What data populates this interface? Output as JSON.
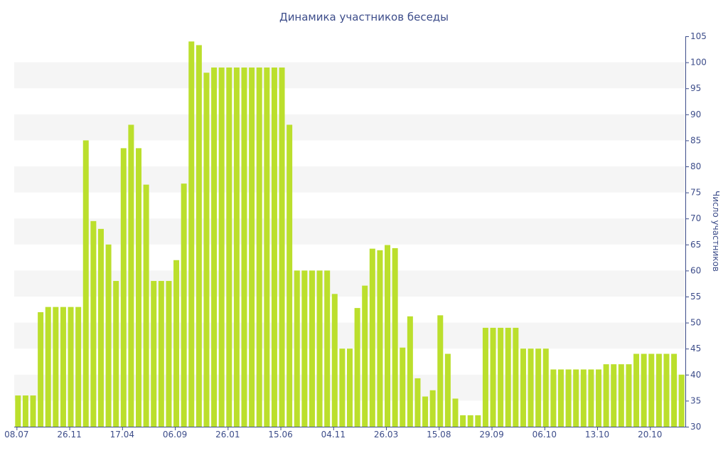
{
  "colors": {
    "bar": "#bbdf2c",
    "text": "#3d4d8a",
    "band": "#f5f5f5",
    "axis": "#3d4d8a"
  },
  "chart_data": {
    "type": "bar",
    "title": "Динамика участников беседы",
    "xlabel": "",
    "ylabel": "Число участников",
    "y_axis_side": "right",
    "ylim": [
      30,
      105
    ],
    "y_ticks": [
      30,
      35,
      40,
      45,
      50,
      55,
      60,
      65,
      70,
      75,
      80,
      85,
      90,
      95,
      100,
      105
    ],
    "grid": "alternating horizontal bands",
    "x_tick_labels": [
      {
        "label": "08.07",
        "index": 0
      },
      {
        "label": "26.11",
        "index": 7
      },
      {
        "label": "17.04",
        "index": 14
      },
      {
        "label": "06.09",
        "index": 21
      },
      {
        "label": "26.01",
        "index": 28
      },
      {
        "label": "15.06",
        "index": 35
      },
      {
        "label": "04.11",
        "index": 42
      },
      {
        "label": "26.03",
        "index": 49
      },
      {
        "label": "15.08",
        "index": 56
      },
      {
        "label": "29.09",
        "index": 63
      },
      {
        "label": "06.10",
        "index": 70
      },
      {
        "label": "13.10",
        "index": 77
      },
      {
        "label": "20.10",
        "index": 84
      }
    ],
    "values": [
      36,
      36,
      36,
      52,
      53,
      53,
      53,
      53,
      53,
      85,
      69.5,
      68,
      65,
      58,
      83.5,
      88,
      83.5,
      76.5,
      58,
      58,
      58,
      62,
      76.7,
      104,
      103.3,
      98,
      99,
      99,
      99,
      99,
      99,
      99,
      99,
      99,
      99,
      99,
      88,
      60,
      60,
      60,
      60,
      60,
      55.5,
      45,
      45,
      52.8,
      57.1,
      64.2,
      63.9,
      64.9,
      64.3,
      45.2,
      51.2,
      39.3,
      35.8,
      37,
      51.4,
      44,
      35.4,
      32.2,
      32.2,
      32.2,
      49,
      49,
      49,
      49,
      49,
      45,
      45,
      45,
      45,
      41,
      41,
      41,
      41,
      41,
      41,
      41,
      42,
      42,
      42,
      42,
      44,
      44,
      44,
      44,
      44,
      44,
      40
    ]
  }
}
